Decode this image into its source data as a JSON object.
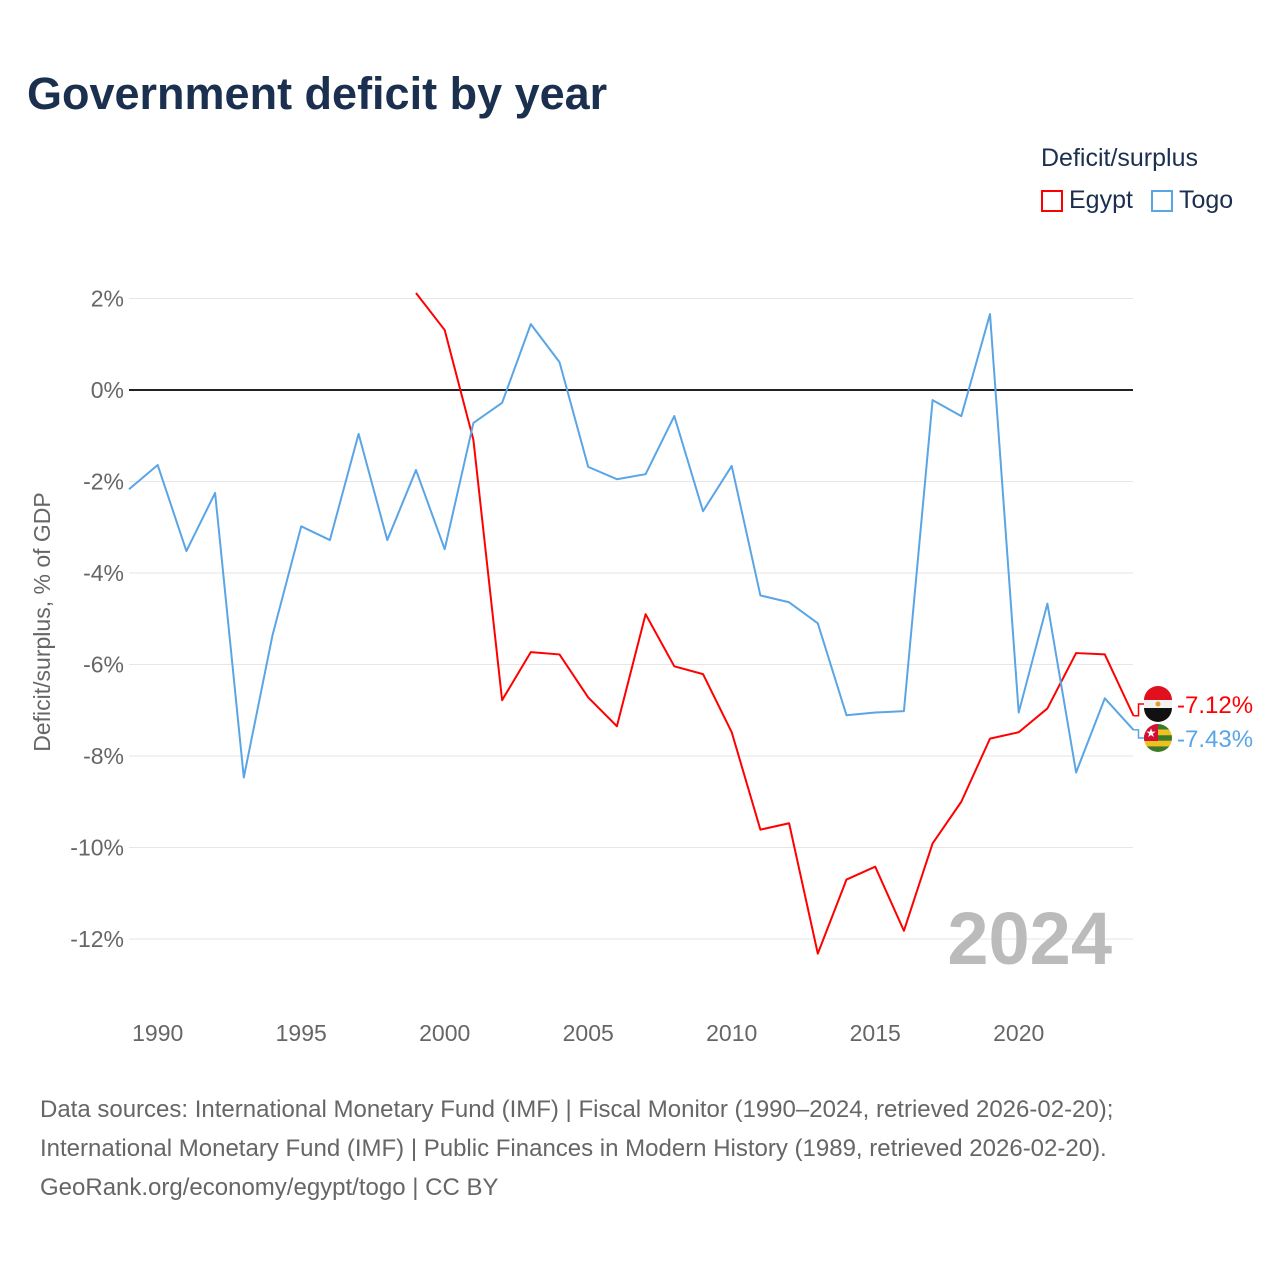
{
  "title": "Government deficit by year",
  "legend": {
    "title": "Deficit/surplus",
    "items": [
      {
        "name": "Egypt",
        "color": "#ff0000"
      },
      {
        "name": "Togo",
        "color": "#5aa5e6"
      }
    ]
  },
  "year_watermark": "2024",
  "sources": [
    "Data sources: International Monetary Fund (IMF) | Fiscal Monitor (1990–2024, retrieved 2026-02-20);",
    "International Monetary Fund (IMF) | Public Finances in Modern History (1989, retrieved 2026-02-20).",
    "GeoRank.org/economy/egypt/togo | CC BY"
  ],
  "chart_data": {
    "type": "line",
    "title": "Government deficit by year",
    "xlabel": "",
    "ylabel": "Deficit/surplus, % of GDP",
    "xlim": [
      1989,
      2024
    ],
    "ylim": [
      -13.5,
      2.5
    ],
    "xticks": [
      1990,
      1995,
      2000,
      2005,
      2010,
      2015,
      2020
    ],
    "yticks": [
      2,
      0,
      -2,
      -4,
      -6,
      -8,
      -10,
      -12
    ],
    "ytick_labels": [
      "2%",
      "0%",
      "-2%",
      "-4%",
      "-6%",
      "-8%",
      "-10%",
      "-12%"
    ],
    "series": [
      {
        "name": "Egypt",
        "color": "#ff0000",
        "end_label": "-7.12%",
        "x": [
          1999,
          2000,
          2001,
          2002,
          2003,
          2004,
          2005,
          2006,
          2007,
          2008,
          2009,
          2010,
          2011,
          2012,
          2013,
          2014,
          2015,
          2016,
          2017,
          2018,
          2019,
          2020,
          2021,
          2022,
          2023,
          2024
        ],
        "values": [
          2.12,
          1.31,
          -1.09,
          -6.78,
          -5.73,
          -5.78,
          -6.72,
          -7.35,
          -4.9,
          -6.04,
          -6.21,
          -7.48,
          -9.61,
          -9.47,
          -12.32,
          -10.7,
          -10.42,
          -11.82,
          -9.91,
          -9.0,
          -7.62,
          -7.48,
          -6.96,
          -5.75,
          -5.78,
          -7.12
        ]
      },
      {
        "name": "Togo",
        "color": "#5aa5e6",
        "end_label": "-7.43%",
        "x": [
          1989,
          1990,
          1991,
          1992,
          1993,
          1994,
          1995,
          1996,
          1997,
          1998,
          1999,
          2000,
          2001,
          2002,
          2003,
          2004,
          2005,
          2006,
          2007,
          2008,
          2009,
          2010,
          2011,
          2012,
          2013,
          2014,
          2015,
          2016,
          2017,
          2018,
          2019,
          2020,
          2021,
          2022,
          2023,
          2024
        ],
        "values": [
          -2.17,
          -1.64,
          -3.52,
          -2.25,
          -8.47,
          -5.36,
          -2.98,
          -3.28,
          -0.96,
          -3.28,
          -1.75,
          -3.48,
          -0.72,
          -0.28,
          1.44,
          0.61,
          -1.68,
          -1.95,
          -1.84,
          -0.57,
          -2.65,
          -1.66,
          -4.49,
          -4.64,
          -5.1,
          -7.11,
          -7.05,
          -7.02,
          -0.22,
          -0.57,
          1.66,
          -7.05,
          -4.67,
          -8.36,
          -6.74,
          -7.43
        ]
      }
    ]
  }
}
